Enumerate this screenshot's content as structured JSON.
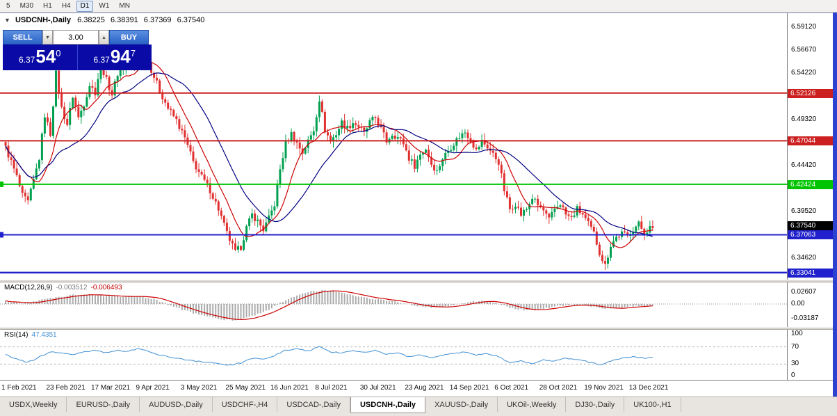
{
  "toolbar": {
    "timeframes": [
      "5",
      "M30",
      "H1",
      "H4",
      "D1",
      "W1",
      "MN"
    ],
    "active_timeframe": "D1"
  },
  "icons": {
    "oct_toggle": "▼",
    "volume_down": "▾",
    "volume_up": "▴"
  },
  "chart": {
    "symbol_title": "USDCNH-,Daily",
    "ohlc": {
      "open": "6.38225",
      "high": "6.38391",
      "low": "6.37369",
      "close": "6.37540"
    }
  },
  "trade_widget": {
    "sell_label": "SELL",
    "buy_label": "BUY",
    "volume": "3.00",
    "sell_price": {
      "prefix": "6.37",
      "big": "54",
      "sup": "0"
    },
    "buy_price": {
      "prefix": "6.37",
      "big": "94",
      "sup": "7"
    }
  },
  "indicators": {
    "macd": {
      "label": "MACD(12,26,9)",
      "value1": "-0.003512",
      "value2": "-0.006493",
      "axis": [
        {
          "v": 0.026,
          "label": "0.02607"
        },
        {
          "v": 0,
          "label": "0.00"
        },
        {
          "v": -0.0318,
          "label": "-0.03187"
        }
      ]
    },
    "rsi": {
      "label": "RSI(14)",
      "value": "47.4351",
      "axis": [
        {
          "v": 100,
          "label": "100"
        },
        {
          "v": 70,
          "label": "70"
        },
        {
          "v": 30,
          "label": "30"
        },
        {
          "v": 0,
          "label": "0"
        }
      ]
    }
  },
  "chart_data": {
    "type": "candlestick",
    "symbol": "USDCNH",
    "timeframe": "Daily",
    "bar_count": 232,
    "bars_per_label": 16,
    "x_labels": [
      "1 Feb 2021",
      "23 Feb 2021",
      "17 Mar 2021",
      "9 Apr 2021",
      "3 May 2021",
      "25 May 2021",
      "16 Jun 2021",
      "8 Jul 2021",
      "30 Jul 2021",
      "23 Aug 2021",
      "14 Sep 2021",
      "6 Oct 2021",
      "28 Oct 2021",
      "19 Nov 2021",
      "13 Dec 2021"
    ],
    "price_axis": {
      "top": 6.606,
      "bottom": 6.3222,
      "ticks": [
        6.5912,
        6.5667,
        6.5422,
        6.4932,
        6.4442,
        6.3952,
        6.3462,
        6.3252
      ]
    },
    "colors": {
      "up": "#00a050",
      "down": "#e03030",
      "ma_fast": "#cc0000",
      "ma_slow": "#000080",
      "histogram": "#ababab",
      "rsi_line": "#3f8fd2"
    },
    "hlines": [
      {
        "price": 6.52126,
        "label": "6.52126",
        "color": "#cc2020",
        "width": 2,
        "edge_mark": false
      },
      {
        "price": 6.47044,
        "label": "6.47044",
        "color": "#cc2020",
        "width": 2,
        "edge_mark": false
      },
      {
        "price": 6.42424,
        "label": "6.42424",
        "color": "#00c400",
        "width": 2,
        "edge_mark": true
      },
      {
        "price": 6.37063,
        "label": "6.37063",
        "color": "#2020cc",
        "width": 2,
        "edge_mark": true
      },
      {
        "price": 6.33041,
        "label": "6.33041",
        "color": "#2020cc",
        "width": 2.5,
        "edge_mark": false
      }
    ],
    "current_price": {
      "value": 6.3754,
      "label": "6.37540",
      "color": "#000000"
    },
    "close_path": [
      [
        0,
        6.463
      ],
      [
        2,
        6.448
      ],
      [
        4,
        6.432
      ],
      [
        6,
        6.412
      ],
      [
        8,
        6.405
      ],
      [
        10,
        6.428
      ],
      [
        12,
        6.452
      ],
      [
        14,
        6.498
      ],
      [
        16,
        6.478
      ],
      [
        18,
        6.542
      ],
      [
        20,
        6.505
      ],
      [
        22,
        6.488
      ],
      [
        24,
        6.518
      ],
      [
        26,
        6.495
      ],
      [
        28,
        6.51
      ],
      [
        30,
        6.53
      ],
      [
        32,
        6.522
      ],
      [
        34,
        6.552
      ],
      [
        36,
        6.535
      ],
      [
        38,
        6.52
      ],
      [
        40,
        6.542
      ],
      [
        43,
        6.553
      ],
      [
        46,
        6.548
      ],
      [
        49,
        6.568
      ],
      [
        52,
        6.546
      ],
      [
        55,
        6.524
      ],
      [
        58,
        6.505
      ],
      [
        61,
        6.492
      ],
      [
        64,
        6.473
      ],
      [
        67,
        6.448
      ],
      [
        70,
        6.432
      ],
      [
        73,
        6.418
      ],
      [
        76,
        6.398
      ],
      [
        79,
        6.372
      ],
      [
        82,
        6.352
      ],
      [
        84,
        6.358
      ],
      [
        86,
        6.378
      ],
      [
        88,
        6.392
      ],
      [
        90,
        6.385
      ],
      [
        92,
        6.376
      ],
      [
        94,
        6.388
      ],
      [
        96,
        6.403
      ],
      [
        98,
        6.44
      ],
      [
        100,
        6.468
      ],
      [
        102,
        6.478
      ],
      [
        104,
        6.468
      ],
      [
        106,
        6.458
      ],
      [
        108,
        6.47
      ],
      [
        110,
        6.482
      ],
      [
        112,
        6.515
      ],
      [
        114,
        6.482
      ],
      [
        116,
        6.47
      ],
      [
        118,
        6.478
      ],
      [
        120,
        6.49
      ],
      [
        122,
        6.484
      ],
      [
        124,
        6.49
      ],
      [
        126,
        6.486
      ],
      [
        128,
        6.478
      ],
      [
        130,
        6.49
      ],
      [
        132,
        6.495
      ],
      [
        134,
        6.483
      ],
      [
        136,
        6.47
      ],
      [
        138,
        6.478
      ],
      [
        140,
        6.474
      ],
      [
        142,
        6.468
      ],
      [
        144,
        6.452
      ],
      [
        146,
        6.444
      ],
      [
        148,
        6.456
      ],
      [
        150,
        6.462
      ],
      [
        152,
        6.446
      ],
      [
        154,
        6.438
      ],
      [
        156,
        6.452
      ],
      [
        158,
        6.46
      ],
      [
        160,
        6.468
      ],
      [
        162,
        6.475
      ],
      [
        164,
        6.48
      ],
      [
        166,
        6.472
      ],
      [
        168,
        6.46
      ],
      [
        170,
        6.47
      ],
      [
        172,
        6.464
      ],
      [
        174,
        6.456
      ],
      [
        176,
        6.448
      ],
      [
        178,
        6.418
      ],
      [
        180,
        6.398
      ],
      [
        182,
        6.404
      ],
      [
        184,
        6.392
      ],
      [
        186,
        6.398
      ],
      [
        188,
        6.41
      ],
      [
        190,
        6.402
      ],
      [
        192,
        6.396
      ],
      [
        194,
        6.386
      ],
      [
        196,
        6.398
      ],
      [
        198,
        6.404
      ],
      [
        200,
        6.392
      ],
      [
        202,
        6.388
      ],
      [
        204,
        6.398
      ],
      [
        206,
        6.392
      ],
      [
        208,
        6.382
      ],
      [
        210,
        6.372
      ],
      [
        212,
        6.352
      ],
      [
        214,
        6.338
      ],
      [
        216,
        6.36
      ],
      [
        218,
        6.368
      ],
      [
        220,
        6.372
      ],
      [
        222,
        6.369
      ],
      [
        224,
        6.377
      ],
      [
        226,
        6.382
      ],
      [
        228,
        6.373
      ],
      [
        230,
        6.378
      ],
      [
        231,
        6.3754
      ]
    ],
    "macd": {
      "range_top": 0.0474,
      "range_bottom": -0.0505,
      "path": [
        [
          0,
          0.006
        ],
        [
          6,
          0.002
        ],
        [
          12,
          0.008
        ],
        [
          18,
          0.014
        ],
        [
          24,
          0.02
        ],
        [
          30,
          0.021
        ],
        [
          36,
          0.018
        ],
        [
          42,
          0.016
        ],
        [
          48,
          0.017
        ],
        [
          52,
          0.012
        ],
        [
          56,
          0.004
        ],
        [
          60,
          -0.006
        ],
        [
          66,
          -0.018
        ],
        [
          72,
          -0.028
        ],
        [
          78,
          -0.034
        ],
        [
          82,
          -0.036
        ],
        [
          86,
          -0.03
        ],
        [
          90,
          -0.022
        ],
        [
          94,
          -0.012
        ],
        [
          98,
          0.002
        ],
        [
          102,
          0.014
        ],
        [
          106,
          0.023
        ],
        [
          110,
          0.028
        ],
        [
          114,
          0.03
        ],
        [
          118,
          0.027
        ],
        [
          122,
          0.022
        ],
        [
          126,
          0.017
        ],
        [
          130,
          0.012
        ],
        [
          134,
          0.009
        ],
        [
          138,
          0.006
        ],
        [
          142,
          0.002
        ],
        [
          146,
          -0.003
        ],
        [
          150,
          -0.007
        ],
        [
          154,
          -0.008
        ],
        [
          158,
          -0.005
        ],
        [
          162,
          0.001
        ],
        [
          166,
          0.005
        ],
        [
          170,
          0.007
        ],
        [
          174,
          0.004
        ],
        [
          178,
          -0.004
        ],
        [
          182,
          -0.011
        ],
        [
          186,
          -0.014
        ],
        [
          190,
          -0.012
        ],
        [
          194,
          -0.008
        ],
        [
          198,
          -0.004
        ],
        [
          202,
          -0.002
        ],
        [
          206,
          -0.003
        ],
        [
          210,
          -0.007
        ],
        [
          214,
          -0.011
        ],
        [
          218,
          -0.009
        ],
        [
          222,
          -0.006
        ],
        [
          226,
          -0.004
        ],
        [
          231,
          -0.0035
        ]
      ]
    },
    "rsi": {
      "levels": [
        70,
        30
      ],
      "path": [
        [
          0,
          52
        ],
        [
          4,
          42
        ],
        [
          8,
          34
        ],
        [
          12,
          46
        ],
        [
          16,
          58
        ],
        [
          20,
          56
        ],
        [
          24,
          52
        ],
        [
          28,
          58
        ],
        [
          32,
          62
        ],
        [
          36,
          57
        ],
        [
          40,
          61
        ],
        [
          44,
          60
        ],
        [
          48,
          66
        ],
        [
          52,
          56
        ],
        [
          56,
          50
        ],
        [
          60,
          45
        ],
        [
          64,
          41
        ],
        [
          68,
          37
        ],
        [
          72,
          34
        ],
        [
          76,
          31
        ],
        [
          80,
          27
        ],
        [
          84,
          33
        ],
        [
          88,
          44
        ],
        [
          92,
          41
        ],
        [
          96,
          50
        ],
        [
          100,
          62
        ],
        [
          104,
          66
        ],
        [
          108,
          60
        ],
        [
          112,
          70
        ],
        [
          116,
          58
        ],
        [
          120,
          56
        ],
        [
          124,
          61
        ],
        [
          128,
          58
        ],
        [
          132,
          61
        ],
        [
          136,
          53
        ],
        [
          140,
          57
        ],
        [
          144,
          47
        ],
        [
          148,
          52
        ],
        [
          152,
          44
        ],
        [
          156,
          50
        ],
        [
          160,
          55
        ],
        [
          164,
          58
        ],
        [
          168,
          51
        ],
        [
          172,
          55
        ],
        [
          176,
          47
        ],
        [
          180,
          33
        ],
        [
          184,
          37
        ],
        [
          188,
          31
        ],
        [
          192,
          40
        ],
        [
          196,
          36
        ],
        [
          200,
          44
        ],
        [
          204,
          41
        ],
        [
          208,
          35
        ],
        [
          212,
          28
        ],
        [
          216,
          38
        ],
        [
          220,
          43
        ],
        [
          224,
          47
        ],
        [
          228,
          44
        ],
        [
          231,
          47.4
        ]
      ]
    }
  },
  "tabs": [
    "USDX,Weekly",
    "EURUSD-,Daily",
    "AUDUSD-,Daily",
    "USDCHF-,H4",
    "USDCAD-,Daily",
    "USDCNH-,Daily",
    "XAUUSD-,Daily",
    "UKOil-,Weekly",
    "DJ30-,Daily",
    "UK100-,H1"
  ],
  "active_tab": "USDCNH-,Daily"
}
